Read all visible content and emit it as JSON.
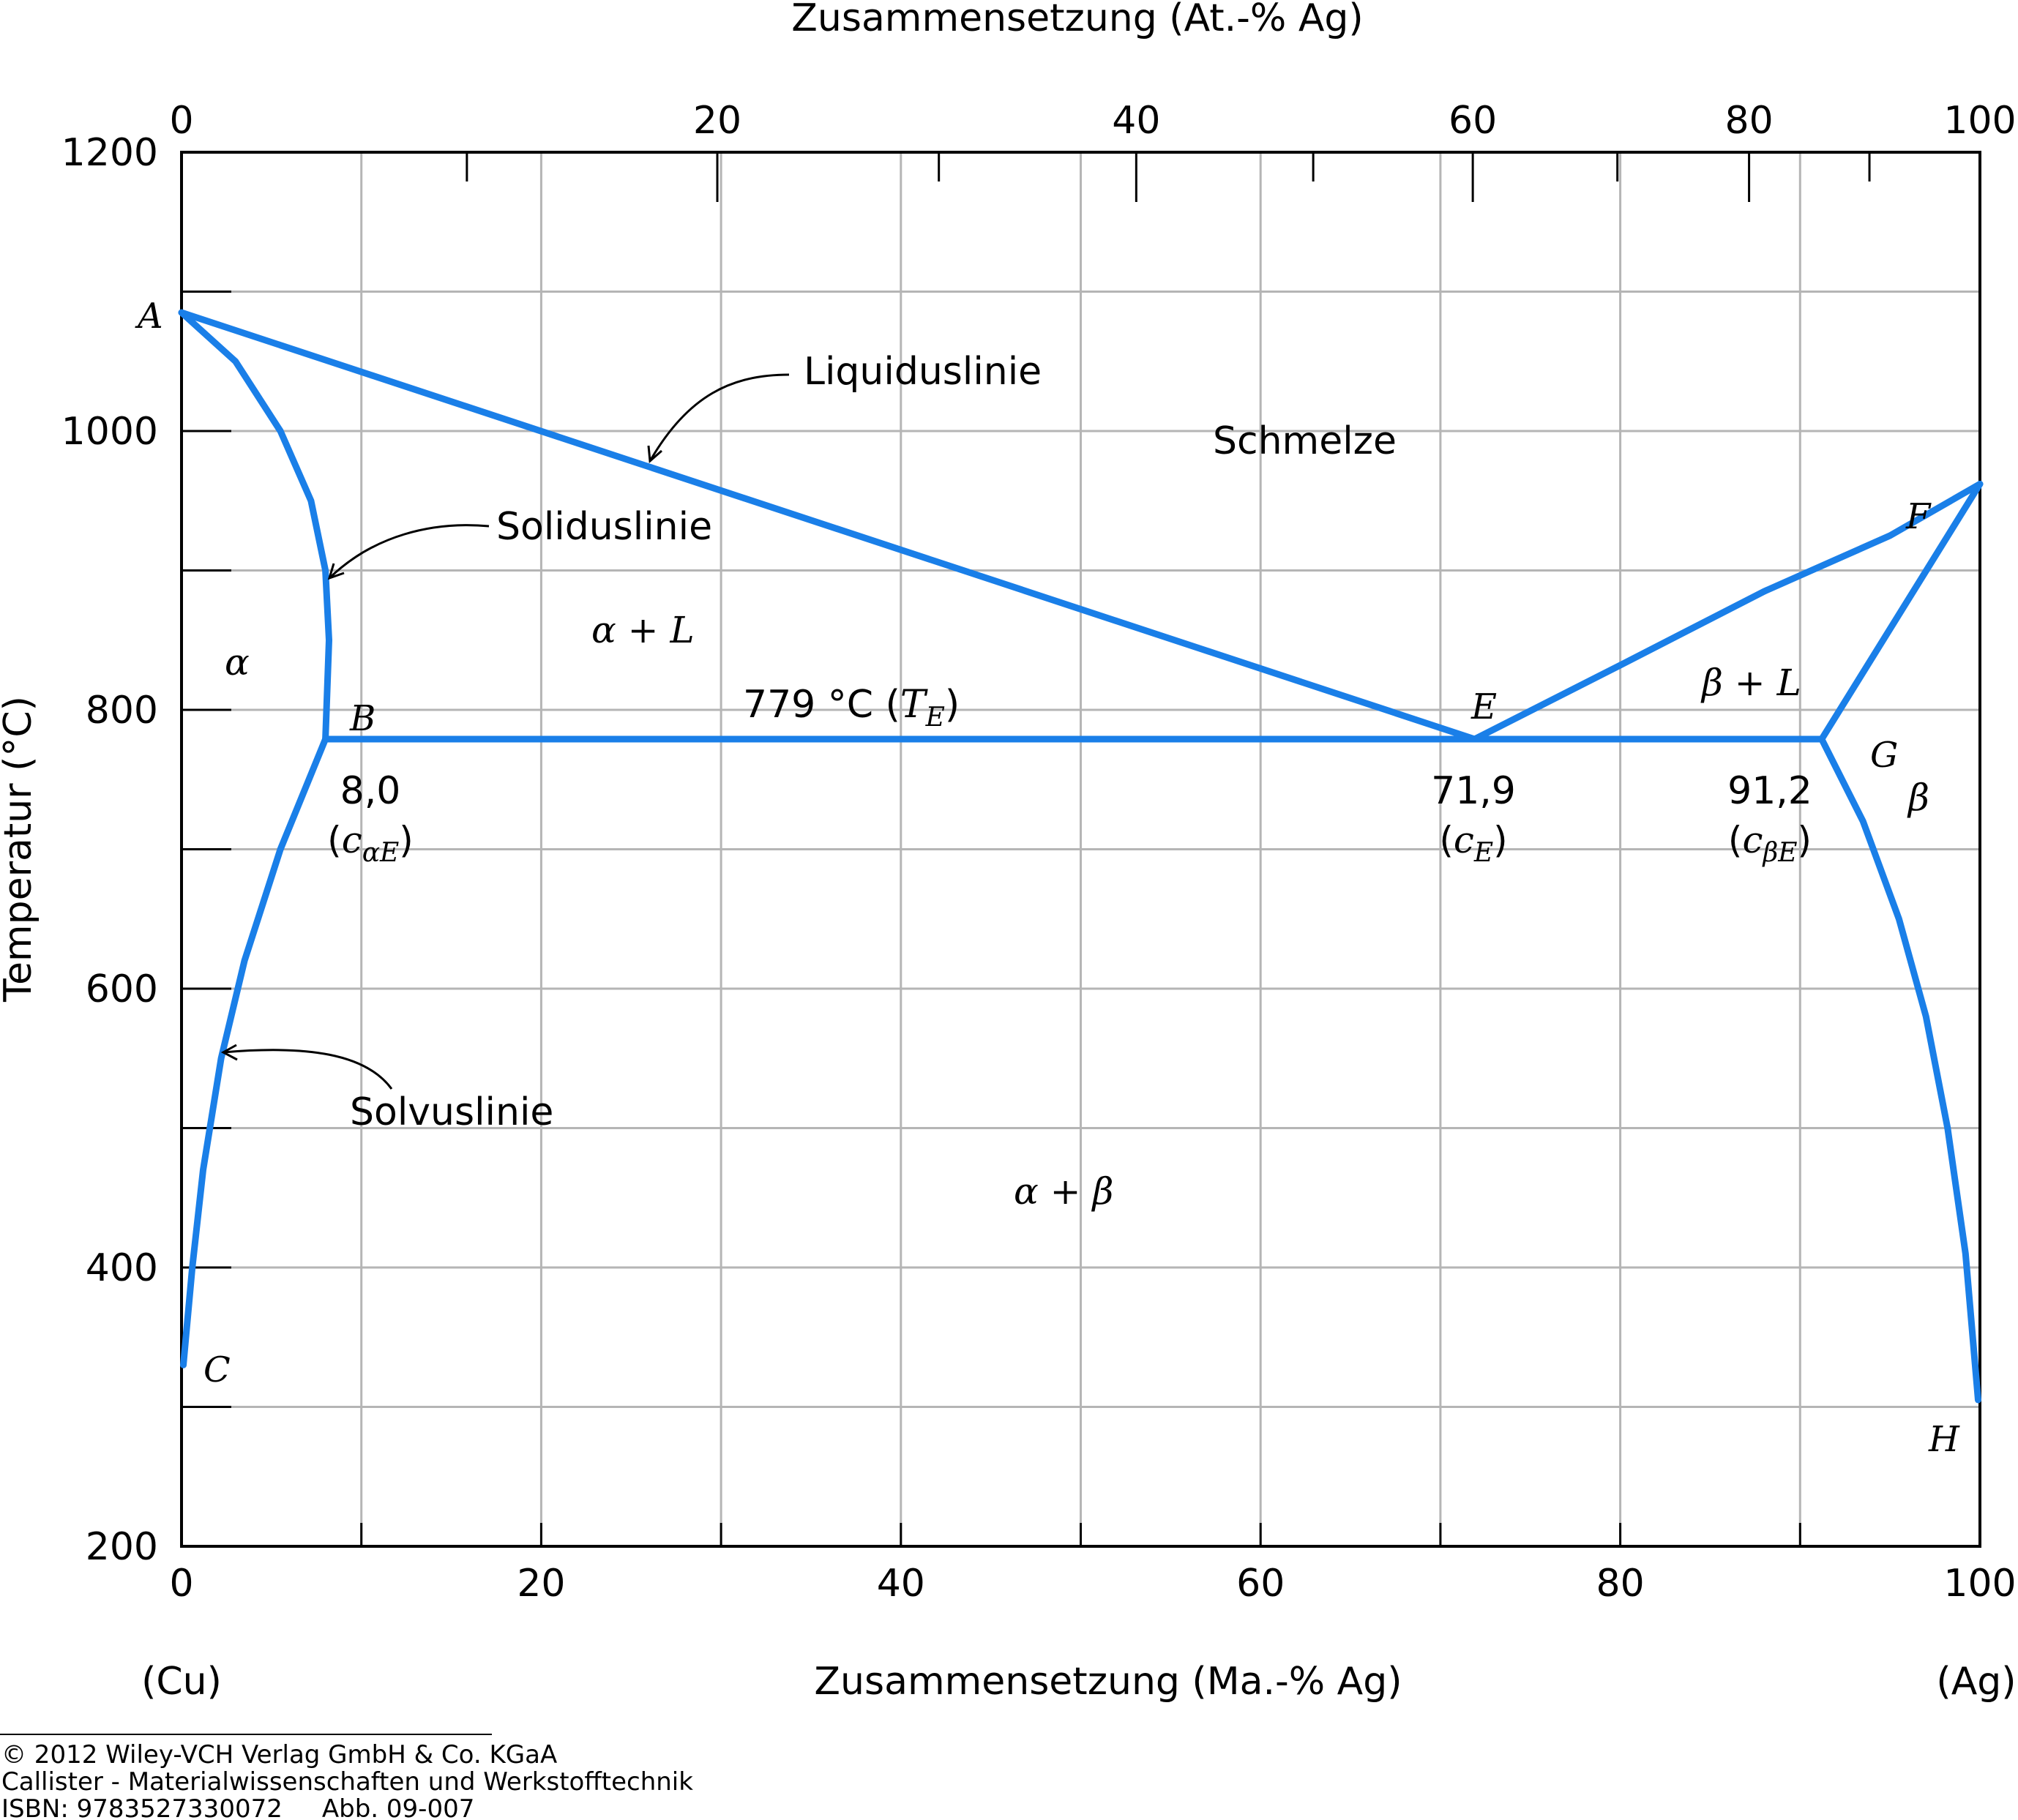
{
  "chart_data": {
    "type": "line",
    "title": "",
    "xlabel": "Zusammensetzung (Ma.-% Ag)",
    "x2label": "Zusammensetzung (At.-% Ag)",
    "ylabel": "Temperatur (°C)",
    "xlim": [
      0,
      100
    ],
    "ylim": [
      200,
      1200
    ],
    "x_ticks": [
      0,
      20,
      40,
      60,
      80,
      100
    ],
    "x_minor_ticks": [
      10,
      30,
      50,
      70,
      90
    ],
    "x2_ticks": [
      0,
      20,
      40,
      60,
      80,
      100
    ],
    "y_ticks": [
      200,
      400,
      600,
      800,
      1000,
      1200
    ],
    "y_minor_ticks": [
      300,
      500,
      700,
      900,
      1100
    ],
    "grid": true,
    "line_color": "#1a7fe8",
    "x_end_labels": {
      "left": "(Cu)",
      "right": "(Ag)"
    },
    "series": [
      {
        "name": "Liquiduslinie",
        "x": [
          0,
          71.9
        ],
        "y": [
          1085,
          779
        ]
      },
      {
        "name": "Liquiduslinie",
        "x": [
          71.9,
          80,
          88,
          95,
          100
        ],
        "y": [
          779,
          832,
          885,
          925,
          962
        ]
      },
      {
        "name": "Soliduslinie",
        "x": [
          0,
          3,
          5.5,
          7.2,
          8.0,
          8.2,
          8.0
        ],
        "y": [
          1085,
          1050,
          1000,
          950,
          900,
          850,
          779
        ]
      },
      {
        "name": "Soliduslinie",
        "x": [
          100,
          91.2
        ],
        "y": [
          962,
          779
        ]
      },
      {
        "name": "",
        "x": [
          8.0,
          91.2
        ],
        "y": [
          779,
          779
        ]
      },
      {
        "name": "Solvuslinie",
        "x": [
          8.0,
          5.5,
          3.5,
          2.2,
          1.2,
          0.6,
          0.1
        ],
        "y": [
          779,
          700,
          620,
          550,
          470,
          400,
          330
        ]
      },
      {
        "name": "Solvuslinie",
        "x": [
          91.2,
          93.5,
          95.5,
          97,
          98.2,
          99.2,
          99.9
        ],
        "y": [
          779,
          720,
          650,
          580,
          500,
          410,
          305
        ]
      }
    ],
    "annotations": {
      "points": {
        "A": "A",
        "B": "B",
        "C": "C",
        "E": "E",
        "F": "F",
        "G": "G",
        "H": "H"
      },
      "regions": {
        "liquid": "Schmelze",
        "alpha_liquid": "α + L",
        "beta_liquid": "β + L",
        "alpha": "α",
        "beta": "β",
        "alpha_beta": "α + β"
      },
      "lines": {
        "liquidus": "Liquiduslinie",
        "solidus": "Soliduslinie",
        "solvus": "Solvuslinie"
      },
      "eutectic_temp": {
        "value": "779 °C",
        "symbol": "T",
        "sub": "E"
      },
      "compositions": [
        {
          "value": "8,0",
          "symbol": "c",
          "sub": "αE"
        },
        {
          "value": "71,9",
          "symbol": "c",
          "sub": "E"
        },
        {
          "value": "91,2",
          "symbol": "c",
          "sub": "βE"
        }
      ]
    },
    "credits": [
      "© 2012 Wiley-VCH Verlag GmbH & Co. KGaA",
      "Callister - Materialwissenschaften und Werkstofftechnik",
      "ISBN: 9783527330072     Abb. 09-007"
    ]
  }
}
